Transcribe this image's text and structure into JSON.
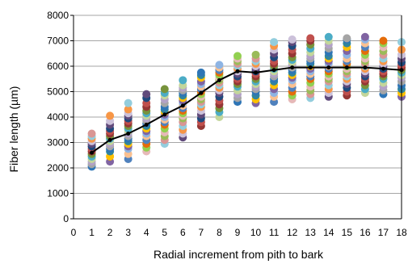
{
  "chart_data": {
    "type": "scatter",
    "title": "",
    "xlabel": "Radial increment from pith to bark",
    "ylabel": "Fiber length (µm)",
    "xlim": [
      0,
      18
    ],
    "ylim": [
      0,
      8000
    ],
    "xticks": [
      "0",
      "1",
      "2",
      "3",
      "4",
      "5",
      "6",
      "7",
      "8",
      "9",
      "10",
      "11",
      "12",
      "13",
      "14",
      "15",
      "16",
      "17",
      "18"
    ],
    "yticks": [
      "0",
      "1000",
      "2000",
      "3000",
      "4000",
      "5000",
      "6000",
      "7000",
      "8000"
    ],
    "grid": "horizontal",
    "legend": "none",
    "point_colors": [
      "#2e75b6",
      "#c0504d",
      "#9bbb59",
      "#8064a2",
      "#4bacc6",
      "#f79646",
      "#4f81bd",
      "#a5a5a5",
      "#1f497d",
      "#e6b9b8",
      "#ffc000",
      "#77933c",
      "#93cddd",
      "#fac090",
      "#b3a2c7",
      "#604a7b",
      "#92d050",
      "#31859c",
      "#953735",
      "#d99694",
      "#8eb4e3",
      "#c3d69b",
      "#ccc1da",
      "#e46c0a"
    ],
    "mean_series": {
      "name": "",
      "color": "#000000",
      "x": [
        1,
        2,
        3,
        4,
        5,
        6,
        7,
        8,
        9,
        10,
        11,
        12,
        13,
        14,
        15,
        16,
        17,
        18
      ],
      "y": [
        2600,
        3100,
        3350,
        3700,
        4100,
        4450,
        4950,
        5450,
        5800,
        5750,
        5850,
        5950,
        5950,
        5950,
        5950,
        5950,
        5900,
        5850
      ]
    },
    "series": [
      {
        "x": 1,
        "y": [
          2050,
          2150,
          2250,
          2350,
          2450,
          2550,
          2650,
          2750,
          2850,
          2950,
          3050,
          3150,
          3250,
          3350
        ]
      },
      {
        "x": 2,
        "y": [
          2250,
          2450,
          2650,
          2750,
          2850,
          2950,
          3050,
          3150,
          3250,
          3350,
          3450,
          3550,
          3700,
          3850,
          4050
        ]
      },
      {
        "x": 3,
        "y": [
          2350,
          2550,
          2750,
          2850,
          2950,
          3050,
          3150,
          3250,
          3350,
          3450,
          3550,
          3650,
          3750,
          3850,
          3950,
          4050,
          4150,
          4300,
          4550
        ]
      },
      {
        "x": 4,
        "y": [
          2650,
          2800,
          2950,
          3100,
          3250,
          3350,
          3450,
          3550,
          3650,
          3750,
          3850,
          3950,
          4050,
          4150,
          4250,
          4400,
          4550,
          4750,
          4900
        ]
      },
      {
        "x": 5,
        "y": [
          2950,
          3100,
          3250,
          3400,
          3550,
          3700,
          3800,
          3900,
          4000,
          4100,
          4200,
          4300,
          4400,
          4550,
          4700,
          4850,
          4950,
          5100
        ]
      },
      {
        "x": 6,
        "y": [
          3200,
          3350,
          3500,
          3650,
          3800,
          3950,
          4050,
          4150,
          4250,
          4350,
          4450,
          4550,
          4650,
          4750,
          4850,
          4950,
          5050,
          5150,
          5250,
          5450
        ]
      },
      {
        "x": 7,
        "y": [
          3650,
          3800,
          3950,
          4100,
          4250,
          4400,
          4500,
          4600,
          4700,
          4800,
          4900,
          5000,
          5100,
          5200,
          5300,
          5400,
          5550,
          5650,
          5750
        ]
      },
      {
        "x": 8,
        "y": [
          4000,
          4200,
          4350,
          4500,
          4650,
          4800,
          4950,
          5050,
          5150,
          5250,
          5350,
          5450,
          5550,
          5650,
          5750,
          5850,
          5950,
          6050
        ]
      },
      {
        "x": 9,
        "y": [
          4600,
          4750,
          4900,
          5050,
          5200,
          5300,
          5400,
          5500,
          5600,
          5700,
          5800,
          5900,
          6000,
          6100,
          6200,
          6300,
          6400
        ]
      },
      {
        "x": 10,
        "y": [
          4550,
          4700,
          4850,
          5000,
          5100,
          5200,
          5300,
          5400,
          5500,
          5600,
          5700,
          5800,
          5900,
          6000,
          6100,
          6200,
          6300,
          6450
        ]
      },
      {
        "x": 11,
        "y": [
          4600,
          4800,
          4950,
          5100,
          5250,
          5400,
          5500,
          5600,
          5700,
          5800,
          5900,
          6000,
          6100,
          6200,
          6350,
          6500,
          6650,
          6800,
          6950
        ]
      },
      {
        "x": 12,
        "y": [
          4700,
          4850,
          5000,
          5150,
          5300,
          5450,
          5550,
          5650,
          5750,
          5850,
          5950,
          6050,
          6150,
          6250,
          6350,
          6500,
          6650,
          6800,
          6950,
          7050
        ]
      },
      {
        "x": 13,
        "y": [
          4750,
          4900,
          5050,
          5200,
          5350,
          5500,
          5600,
          5700,
          5800,
          5900,
          6000,
          6100,
          6200,
          6300,
          6400,
          6550,
          6700,
          6850,
          7000,
          7100
        ]
      },
      {
        "x": 14,
        "y": [
          4800,
          4950,
          5100,
          5250,
          5400,
          5500,
          5600,
          5700,
          5800,
          5900,
          6000,
          6100,
          6200,
          6300,
          6400,
          6550,
          6700,
          6850,
          7000,
          7150
        ]
      },
      {
        "x": 15,
        "y": [
          4850,
          5000,
          5150,
          5300,
          5400,
          5500,
          5600,
          5700,
          5800,
          5900,
          6000,
          6100,
          6200,
          6300,
          6450,
          6600,
          6750,
          6900,
          7050,
          7100
        ]
      },
      {
        "x": 16,
        "y": [
          4950,
          5100,
          5250,
          5400,
          5500,
          5600,
          5700,
          5800,
          5900,
          6000,
          6100,
          6200,
          6300,
          6450,
          6600,
          6750,
          6900,
          7050,
          7150
        ]
      },
      {
        "x": 17,
        "y": [
          4900,
          5050,
          5200,
          5350,
          5500,
          5600,
          5700,
          5800,
          5900,
          6000,
          6100,
          6200,
          6300,
          6450,
          6600,
          6750,
          6900,
          7000
        ]
      },
      {
        "x": 18,
        "y": [
          4800,
          4950,
          5100,
          5250,
          5400,
          5550,
          5650,
          5750,
          5850,
          5950,
          6050,
          6150,
          6300,
          6450,
          6650,
          6950
        ]
      }
    ]
  }
}
